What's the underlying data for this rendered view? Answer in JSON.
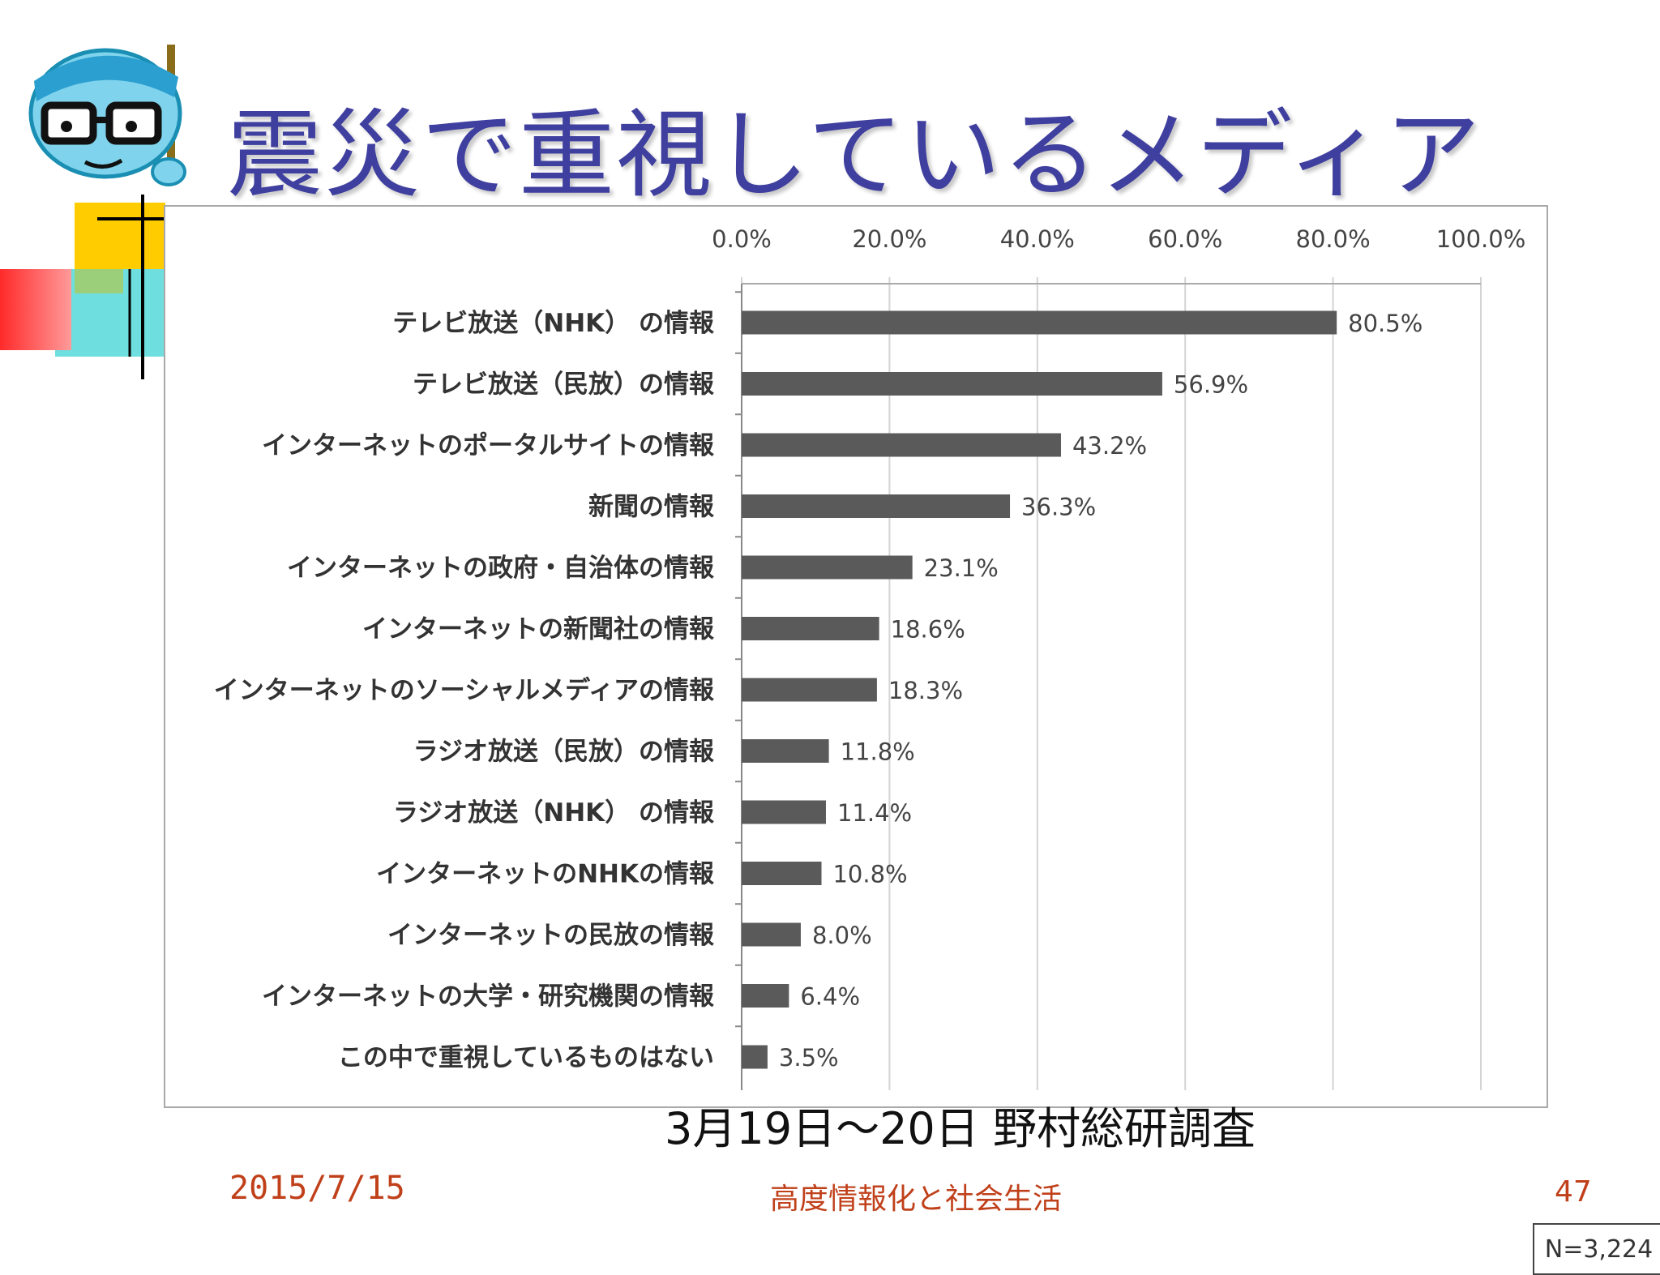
{
  "slide": {
    "title": "震災で重視しているメディア",
    "survey_note": "3月19日～20日 野村総研調査",
    "footer_date": "2015/7/15",
    "footer_center": "高度情報化と社会生活",
    "page_number": "47"
  },
  "colors": {
    "title": "#3f3f9f",
    "bar": "#5a5a5a",
    "footer": "#c0401a",
    "deco_yellow": "#ffcc00",
    "deco_red": "#ff3333",
    "deco_cyan": "#66dddd"
  },
  "chart_data": {
    "type": "bar",
    "orientation": "horizontal",
    "xlim": [
      0,
      100
    ],
    "tick_labels": [
      "0.0%",
      "20.0%",
      "40.0%",
      "60.0%",
      "80.0%",
      "100.0%"
    ],
    "grid": true,
    "note_box": "N=3,224",
    "categories": [
      "テレビ放送（NHK） の情報",
      "テレビ放送（民放）の情報",
      "インターネットのポータルサイトの情報",
      "新聞の情報",
      "インターネットの政府・自治体の情報",
      "インターネットの新聞社の情報",
      "インターネットのソーシャルメディアの情報",
      "ラジオ放送（民放）の情報",
      "ラジオ放送（NHK） の情報",
      "インターネットのNHKの情報",
      "インターネットの民放の情報",
      "インターネットの大学・研究機関の情報",
      "この中で重視しているものはない"
    ],
    "values": [
      80.5,
      56.9,
      43.2,
      36.3,
      23.1,
      18.6,
      18.3,
      11.8,
      11.4,
      10.8,
      8.0,
      6.4,
      3.5
    ],
    "value_labels": [
      "80.5%",
      "56.9%",
      "43.2%",
      "36.3%",
      "23.1%",
      "18.6%",
      "18.3%",
      "11.8%",
      "11.4%",
      "10.8%",
      "8.0%",
      "6.4%",
      "3.5%"
    ]
  }
}
